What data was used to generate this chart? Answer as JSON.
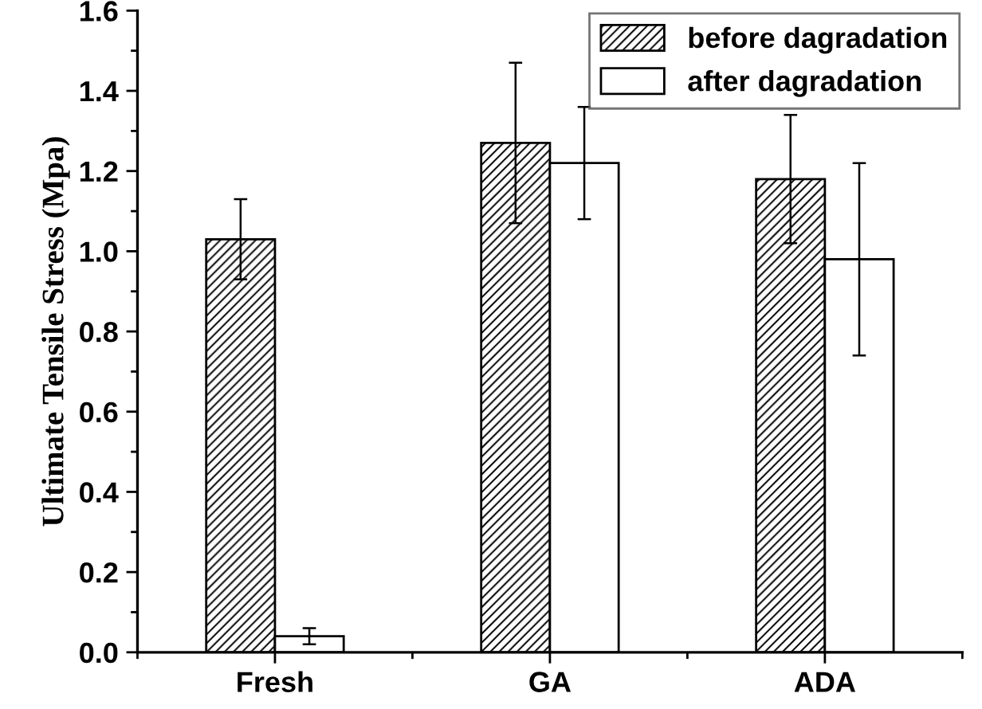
{
  "chart_data": {
    "type": "bar",
    "ylabel": "Ultimate Tensile Stress (Mpa)",
    "categories": [
      "Fresh",
      "GA",
      "ADA"
    ],
    "series": [
      {
        "name": "before dagradation",
        "color": "#000000",
        "values": [
          1.03,
          1.27,
          1.18
        ],
        "errors": [
          0.1,
          0.2,
          0.16
        ]
      },
      {
        "name": "after dagradation",
        "color": "#ffffff",
        "values": [
          0.04,
          1.22,
          0.98
        ],
        "errors": [
          0.02,
          0.14,
          0.24
        ]
      }
    ],
    "ylim": [
      0,
      1.6
    ],
    "yticks": [
      {
        "value": 0,
        "label": "0.0"
      },
      0.2,
      0.4,
      0.6,
      0.8,
      {
        "value": 1,
        "label": "1.0"
      },
      1.2,
      1.4,
      1.6
    ],
    "grid": false,
    "legend": "top right"
  }
}
